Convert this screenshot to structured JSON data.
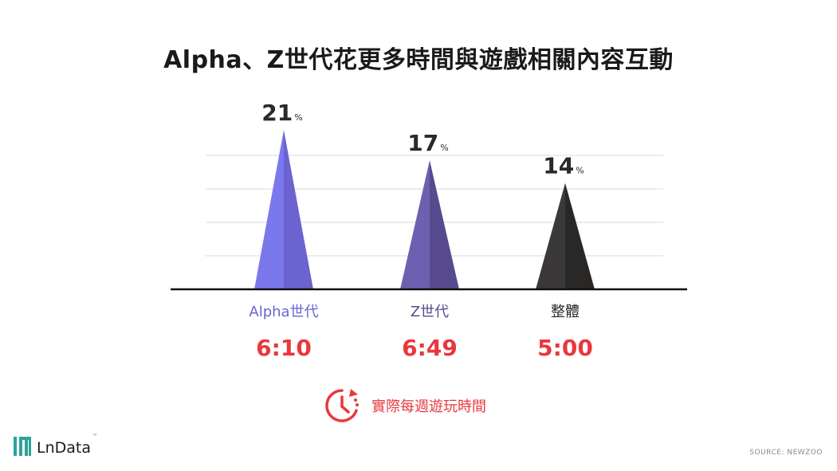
{
  "title": "Alpha、Z世代花更多時間與遊戲相關內容互動",
  "chart_data": {
    "type": "bar",
    "categories": [
      "Alpha世代",
      "Z世代",
      "整體"
    ],
    "values": [
      21,
      17,
      14
    ],
    "value_unit": "%",
    "play_times": [
      "6:10",
      "6:49",
      "5:00"
    ],
    "ylim": [
      0,
      25
    ],
    "grid": true,
    "colors": {
      "light": [
        "#7b78ec",
        "#6d60b0",
        "#3a3838"
      ],
      "dark": [
        "#6a63d0",
        "#574a8e",
        "#2a2727"
      ]
    },
    "category_label_colors": [
      "#6a63d0",
      "#574a8e",
      "#2a2727"
    ],
    "play_time_color": "#e8383d"
  },
  "legend": {
    "label": "實際每週遊玩時間",
    "icon": "clock-icon",
    "color": "#e8383d"
  },
  "logo": {
    "text": "LnData",
    "tm": "™"
  },
  "source": "SOURCE: NEWZOO"
}
